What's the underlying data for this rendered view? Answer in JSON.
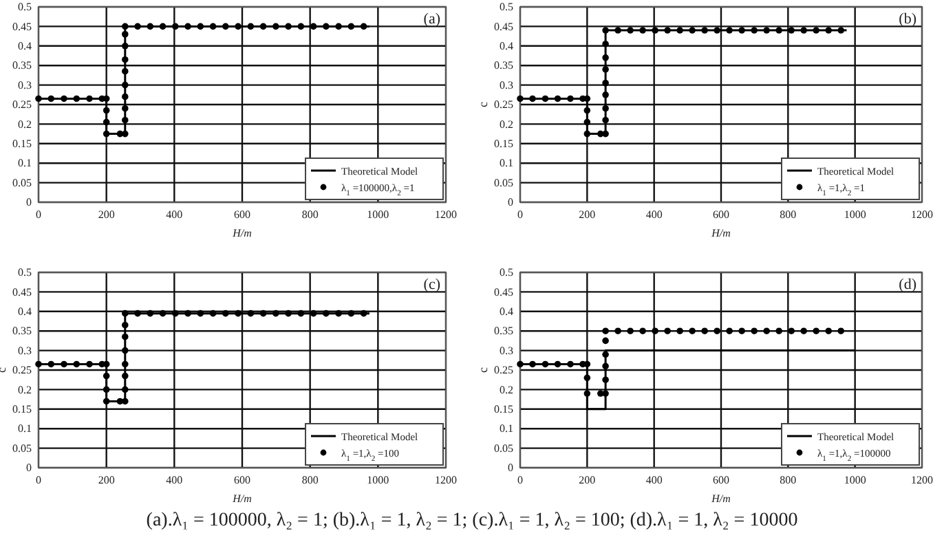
{
  "chart_data": [
    {
      "type": "scatter",
      "xlabel": "H/m",
      "xlim": [
        0,
        1200
      ],
      "xticks": [
        0,
        200,
        400,
        600,
        800,
        1000,
        1200
      ],
      "ylim": [
        0,
        0.5
      ],
      "yticks": [
        0,
        0.05,
        0.1,
        0.15,
        0.2,
        0.25,
        0.3,
        0.35,
        0.4,
        0.45,
        0.5
      ],
      "grid": true,
      "legend": "bottom right",
      "annotations": [
        "(a)"
      ],
      "series": [
        {
          "type": "line",
          "name": "Theoretical Model",
          "color": "#000000",
          "line_style": "solid",
          "marker": "none",
          "x": [
            0,
            200,
            200,
            255,
            255,
            975
          ],
          "values": [
            0.265,
            0.265,
            0.175,
            0.175,
            0.45,
            0.45
          ]
        },
        {
          "type": "scatter",
          "name": "λ$_{1}$ =100000,λ$_{2}$ =1",
          "color": "#000000",
          "marker": "circle",
          "x": [
            0,
            37,
            75,
            112,
            150,
            187,
            200,
            200,
            200,
            200,
            240,
            255,
            255,
            255,
            255,
            255,
            255,
            255,
            255,
            255,
            255,
            292,
            329,
            366,
            403,
            440,
            477,
            514,
            551,
            588,
            625,
            662,
            699,
            736,
            773,
            810,
            847,
            884,
            921,
            958
          ],
          "values": [
            0.265,
            0.265,
            0.265,
            0.265,
            0.265,
            0.265,
            0.265,
            0.235,
            0.205,
            0.175,
            0.175,
            0.175,
            0.21,
            0.24,
            0.27,
            0.3,
            0.335,
            0.365,
            0.4,
            0.43,
            0.45,
            0.45,
            0.45,
            0.45,
            0.45,
            0.45,
            0.45,
            0.45,
            0.45,
            0.45,
            0.45,
            0.45,
            0.45,
            0.45,
            0.45,
            0.45,
            0.45,
            0.45,
            0.45,
            0.45
          ]
        }
      ]
    },
    {
      "type": "scatter",
      "xlabel": "H/m",
      "ylabel": "c",
      "xlim": [
        0,
        1200
      ],
      "xticks": [
        0,
        200,
        400,
        600,
        800,
        1000,
        1200
      ],
      "ylim": [
        0,
        0.5
      ],
      "yticks": [
        0,
        0.05,
        0.1,
        0.15,
        0.2,
        0.25,
        0.3,
        0.35,
        0.4,
        0.45,
        0.5
      ],
      "grid": true,
      "legend": "bottom right",
      "annotations": [
        "(b)"
      ],
      "series": [
        {
          "type": "line",
          "name": "Theoretical Model",
          "color": "#000000",
          "line_style": "solid",
          "marker": "none",
          "x": [
            0,
            200,
            200,
            255,
            255,
            975
          ],
          "values": [
            0.265,
            0.265,
            0.175,
            0.175,
            0.44,
            0.44
          ]
        },
        {
          "type": "scatter",
          "name": "λ$_{1}$ =1,λ$_{2}$ =1",
          "color": "#000000",
          "marker": "circle",
          "x": [
            0,
            37,
            75,
            112,
            150,
            187,
            200,
            200,
            200,
            200,
            240,
            255,
            255,
            255,
            255,
            255,
            255,
            255,
            255,
            255,
            292,
            329,
            366,
            403,
            440,
            477,
            514,
            551,
            588,
            625,
            662,
            699,
            736,
            773,
            810,
            847,
            884,
            921,
            958
          ],
          "values": [
            0.265,
            0.265,
            0.265,
            0.265,
            0.265,
            0.265,
            0.265,
            0.235,
            0.205,
            0.175,
            0.175,
            0.175,
            0.21,
            0.24,
            0.275,
            0.305,
            0.34,
            0.37,
            0.405,
            0.44,
            0.44,
            0.44,
            0.44,
            0.44,
            0.44,
            0.44,
            0.44,
            0.44,
            0.44,
            0.44,
            0.44,
            0.44,
            0.44,
            0.44,
            0.44,
            0.44,
            0.44,
            0.44,
            0.44
          ]
        }
      ]
    },
    {
      "type": "scatter",
      "xlabel": "H/m",
      "ylabel": "c",
      "xlim": [
        0,
        1200
      ],
      "xticks": [
        0,
        200,
        400,
        600,
        800,
        1000,
        1200
      ],
      "ylim": [
        0,
        0.5
      ],
      "yticks": [
        0,
        0.05,
        0.1,
        0.15,
        0.2,
        0.25,
        0.3,
        0.35,
        0.4,
        0.45,
        0.5
      ],
      "grid": true,
      "legend": "bottom right",
      "annotations": [
        "(c)"
      ],
      "series": [
        {
          "type": "line",
          "name": "Theoretical Model",
          "color": "#000000",
          "line_style": "solid",
          "marker": "none",
          "x": [
            0,
            200,
            200,
            255,
            255,
            975
          ],
          "values": [
            0.265,
            0.265,
            0.17,
            0.17,
            0.395,
            0.395
          ]
        },
        {
          "type": "scatter",
          "name": "λ$_{1}$ =1,λ$_{2}$ =100",
          "color": "#000000",
          "marker": "circle",
          "x": [
            0,
            37,
            75,
            112,
            150,
            187,
            200,
            200,
            200,
            200,
            240,
            255,
            255,
            255,
            255,
            255,
            255,
            255,
            255,
            292,
            329,
            366,
            403,
            440,
            477,
            514,
            551,
            588,
            625,
            662,
            699,
            736,
            773,
            810,
            847,
            884,
            921,
            958
          ],
          "values": [
            0.265,
            0.265,
            0.265,
            0.265,
            0.265,
            0.265,
            0.265,
            0.235,
            0.2,
            0.17,
            0.17,
            0.17,
            0.2,
            0.235,
            0.265,
            0.3,
            0.335,
            0.365,
            0.395,
            0.395,
            0.395,
            0.395,
            0.395,
            0.395,
            0.395,
            0.395,
            0.395,
            0.395,
            0.395,
            0.395,
            0.395,
            0.395,
            0.395,
            0.395,
            0.395,
            0.395,
            0.395,
            0.395
          ]
        }
      ]
    },
    {
      "type": "scatter",
      "xlabel": "H/m",
      "ylabel": "c",
      "xlim": [
        0,
        1200
      ],
      "xticks": [
        0,
        200,
        400,
        600,
        800,
        1000,
        1200
      ],
      "ylim": [
        0,
        0.5
      ],
      "yticks": [
        0,
        0.05,
        0.1,
        0.15,
        0.2,
        0.25,
        0.3,
        0.35,
        0.4,
        0.45,
        0.5
      ],
      "grid": true,
      "legend": "bottom right",
      "annotations": [
        "(d)",
        "(a).λ₁ = 100000, λ₂ = 1; (b).λ₁ = 1, λ₂ = 1; (c).λ₁ = 1, λ₂ = 100; (d).λ₁ = 1, λ₂ = 10000"
      ],
      "series": [
        {
          "type": "line",
          "name": "Theoretical Model",
          "color": "#000000",
          "line_style": "solid",
          "marker": "none",
          "x": [
            0,
            200,
            200,
            255,
            255,
            1000
          ],
          "values": [
            0.265,
            0.265,
            0.15,
            0.15,
            0.3,
            0.3
          ]
        },
        {
          "type": "scatter",
          "name": "λ$_{1}$ =1,λ$_{2}$ =100000",
          "color": "#000000",
          "marker": "circle",
          "x": [
            0,
            37,
            75,
            112,
            150,
            187,
            200,
            200,
            200,
            240,
            255,
            255,
            255,
            255,
            255,
            255,
            292,
            329,
            366,
            403,
            440,
            477,
            514,
            551,
            588,
            625,
            662,
            699,
            736,
            773,
            810,
            847,
            884,
            921,
            958
          ],
          "values": [
            0.265,
            0.265,
            0.265,
            0.265,
            0.265,
            0.265,
            0.265,
            0.23,
            0.19,
            0.19,
            0.19,
            0.225,
            0.26,
            0.29,
            0.325,
            0.35,
            0.35,
            0.35,
            0.35,
            0.35,
            0.35,
            0.35,
            0.35,
            0.35,
            0.35,
            0.35,
            0.35,
            0.35,
            0.35,
            0.35,
            0.35,
            0.35,
            0.35,
            0.35,
            0.35
          ]
        }
      ]
    }
  ]
}
